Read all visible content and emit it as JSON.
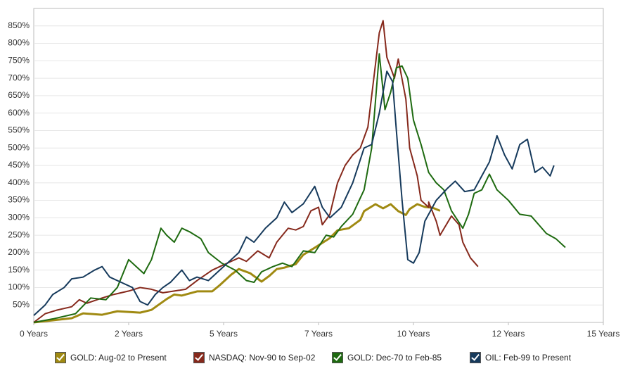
{
  "chart_data": {
    "type": "line",
    "xlim": [
      0,
      15
    ],
    "xticks": [
      {
        "value": 0,
        "label": "0 Years"
      },
      {
        "value": 2.5,
        "label": "2 Years"
      },
      {
        "value": 5,
        "label": "5 Years"
      },
      {
        "value": 7.5,
        "label": "7 Years"
      },
      {
        "value": 10,
        "label": "10 Years"
      },
      {
        "value": 12.5,
        "label": "12 Years"
      },
      {
        "value": 15,
        "label": "15 Years"
      }
    ],
    "ylim": [
      0,
      900
    ],
    "yticks": [
      {
        "value": 50,
        "label": "50%"
      },
      {
        "value": 100,
        "label": "100%"
      },
      {
        "value": 150,
        "label": "150%"
      },
      {
        "value": 200,
        "label": "200%"
      },
      {
        "value": 250,
        "label": "250%"
      },
      {
        "value": 300,
        "label": "300%"
      },
      {
        "value": 350,
        "label": "350%"
      },
      {
        "value": 400,
        "label": "400%"
      },
      {
        "value": 450,
        "label": "450%"
      },
      {
        "value": 500,
        "label": "500%"
      },
      {
        "value": 550,
        "label": "550%"
      },
      {
        "value": 600,
        "label": "600%"
      },
      {
        "value": 650,
        "label": "650%"
      },
      {
        "value": 700,
        "label": "700%"
      },
      {
        "value": 750,
        "label": "750%"
      },
      {
        "value": 800,
        "label": "800%"
      },
      {
        "value": 850,
        "label": "850%"
      }
    ],
    "grid": true,
    "series": [
      {
        "name": "GOLD: Aug-02 to Present",
        "color": "#a08a12",
        "x": [
          0,
          1,
          1.3,
          1.8,
          2.2,
          2.8,
          3.1,
          3.5,
          3.7,
          3.9,
          4.3,
          4.7,
          4.9,
          5.2,
          5.4,
          5.7,
          6.0,
          6.2,
          6.4,
          6.6,
          6.9,
          7.1,
          7.4,
          7.6,
          7.8,
          8.0,
          8.3,
          8.6,
          8.7,
          9.0,
          9.2,
          9.4,
          9.6,
          9.8,
          9.9,
          10.1,
          10.3,
          10.5,
          10.7
        ],
        "values": [
          0,
          12,
          26,
          22,
          32,
          28,
          36,
          67,
          80,
          77,
          89,
          89,
          107,
          137,
          153,
          141,
          117,
          133,
          153,
          157,
          167,
          194,
          214,
          228,
          242,
          264,
          270,
          294,
          319,
          339,
          327,
          339,
          319,
          308,
          325,
          339,
          331,
          329,
          320
        ]
      },
      {
        "name": "NASDAQ: Nov-90 to Sep-02",
        "color": "#86291c",
        "x": [
          0,
          0.3,
          0.6,
          1.0,
          1.2,
          1.4,
          1.8,
          2.1,
          2.5,
          2.8,
          3.1,
          3.4,
          3.7,
          4.0,
          4.3,
          4.7,
          4.9,
          5.2,
          5.4,
          5.6,
          5.9,
          6.2,
          6.4,
          6.7,
          6.9,
          7.1,
          7.3,
          7.5,
          7.6,
          7.8,
          8.0,
          8.2,
          8.4,
          8.6,
          8.8,
          8.9,
          9.1,
          9.2,
          9.3,
          9.5,
          9.6,
          9.8,
          9.9,
          10.1,
          10.2,
          10.4,
          10.4,
          10.6,
          10.7,
          11.0,
          11.2,
          11.3,
          11.5,
          11.7
        ],
        "values": [
          0,
          25,
          35,
          45,
          65,
          55,
          70,
          80,
          90,
          100,
          95,
          85,
          90,
          95,
          120,
          150,
          160,
          175,
          185,
          175,
          205,
          185,
          230,
          270,
          265,
          275,
          320,
          330,
          280,
          310,
          400,
          450,
          480,
          500,
          560,
          650,
          830,
          865,
          760,
          700,
          755,
          640,
          500,
          420,
          350,
          330,
          345,
          290,
          250,
          305,
          280,
          230,
          185,
          160
        ]
      },
      {
        "name": "GOLD: Dec-70 to Feb-85",
        "color": "#1e6a10",
        "x": [
          0,
          0.5,
          1.1,
          1.5,
          1.9,
          2.2,
          2.5,
          2.7,
          2.9,
          3.1,
          3.35,
          3.5,
          3.7,
          3.9,
          4.1,
          4.4,
          4.6,
          4.95,
          5.3,
          5.6,
          5.8,
          6.0,
          6.3,
          6.55,
          6.8,
          7.1,
          7.4,
          7.7,
          7.9,
          8.1,
          8.4,
          8.7,
          8.9,
          9.1,
          9.25,
          9.4,
          9.55,
          9.7,
          9.85,
          10.0,
          10.2,
          10.4,
          10.6,
          10.8,
          11.0,
          11.3,
          11.45,
          11.6,
          11.8,
          12.0,
          12.2,
          12.5,
          12.8,
          13.1,
          13.3,
          13.5,
          13.75,
          14.0
        ],
        "values": [
          0,
          10,
          25,
          70,
          65,
          100,
          180,
          160,
          140,
          180,
          270,
          250,
          230,
          270,
          260,
          240,
          200,
          170,
          150,
          120,
          115,
          145,
          160,
          170,
          160,
          205,
          200,
          250,
          245,
          275,
          310,
          380,
          500,
          770,
          610,
          660,
          730,
          735,
          700,
          580,
          510,
          430,
          400,
          380,
          320,
          270,
          310,
          370,
          380,
          425,
          380,
          350,
          310,
          305,
          280,
          255,
          240,
          215
        ]
      },
      {
        "name": "OIL: Feb-99 to Present",
        "color": "#163a5c",
        "x": [
          0,
          0.3,
          0.5,
          0.8,
          1.0,
          1.3,
          1.6,
          1.8,
          2.0,
          2.3,
          2.6,
          2.8,
          3.0,
          3.2,
          3.4,
          3.6,
          3.9,
          4.1,
          4.3,
          4.6,
          4.9,
          5.2,
          5.4,
          5.6,
          5.8,
          6.1,
          6.4,
          6.6,
          6.8,
          7.1,
          7.4,
          7.6,
          7.8,
          8.1,
          8.4,
          8.7,
          8.9,
          9.1,
          9.3,
          9.45,
          9.55,
          9.7,
          9.85,
          10.0,
          10.15,
          10.3,
          10.6,
          10.9,
          11.1,
          11.35,
          11.6,
          11.8,
          12.0,
          12.2,
          12.4,
          12.6,
          12.8,
          13.0,
          13.2,
          13.4,
          13.6,
          13.7
        ],
        "values": [
          20,
          50,
          80,
          100,
          125,
          130,
          150,
          160,
          130,
          115,
          100,
          60,
          50,
          80,
          100,
          115,
          150,
          120,
          130,
          120,
          150,
          180,
          200,
          245,
          230,
          270,
          300,
          345,
          315,
          340,
          390,
          330,
          300,
          330,
          400,
          500,
          510,
          600,
          720,
          690,
          550,
          350,
          180,
          170,
          200,
          290,
          350,
          385,
          405,
          375,
          380,
          420,
          460,
          535,
          480,
          440,
          510,
          525,
          430,
          445,
          420,
          450
        ]
      }
    ]
  }
}
